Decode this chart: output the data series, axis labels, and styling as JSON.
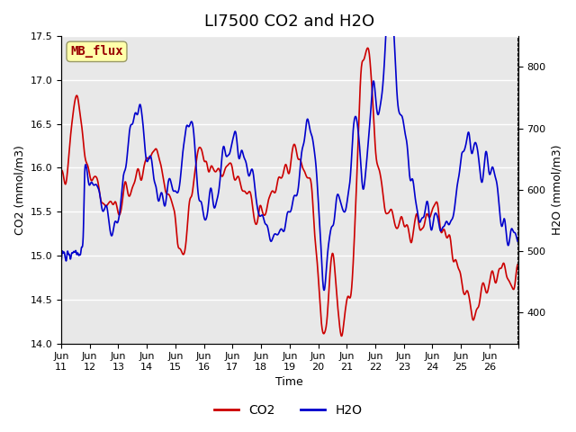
{
  "title": "LI7500 CO2 and H2O",
  "xlabel": "Time",
  "ylabel_left": "CO2 (mmol/m3)",
  "ylabel_right": "H2O (mmol/m3)",
  "co2_ylim": [
    14.0,
    17.5
  ],
  "h2o_ylim": [
    350,
    850
  ],
  "co2_color": "#cc0000",
  "h2o_color": "#0000cc",
  "co2_label": "CO2",
  "h2o_label": "H2O",
  "background_color": "#ffffff",
  "plot_bg_color": "#e8e8e8",
  "grid_color": "#ffffff",
  "annotation_text": "MB_flux",
  "annotation_bg": "#ffffaa",
  "annotation_border": "#999966",
  "x_tick_positions": [
    0,
    1,
    2,
    3,
    4,
    5,
    6,
    7,
    8,
    9,
    10,
    11,
    12,
    13,
    14,
    15,
    16
  ],
  "x_tick_labels": [
    "Jun\n11",
    "Jun\n12",
    "Jun\n13",
    "Jun\n14",
    "Jun\n15",
    "Jun\n16",
    "Jun\n17",
    "Jun\n18",
    "Jun\n19",
    "Jun\n20",
    "Jun\n21",
    "Jun\n22",
    "Jun\n23",
    "Jun\n24",
    "Jun\n25",
    "Jun\n26",
    ""
  ],
  "n_points": 1500,
  "title_fontsize": 13,
  "axis_fontsize": 9,
  "tick_fontsize": 8,
  "legend_fontsize": 10,
  "line_width": 1.2,
  "seed": 42
}
